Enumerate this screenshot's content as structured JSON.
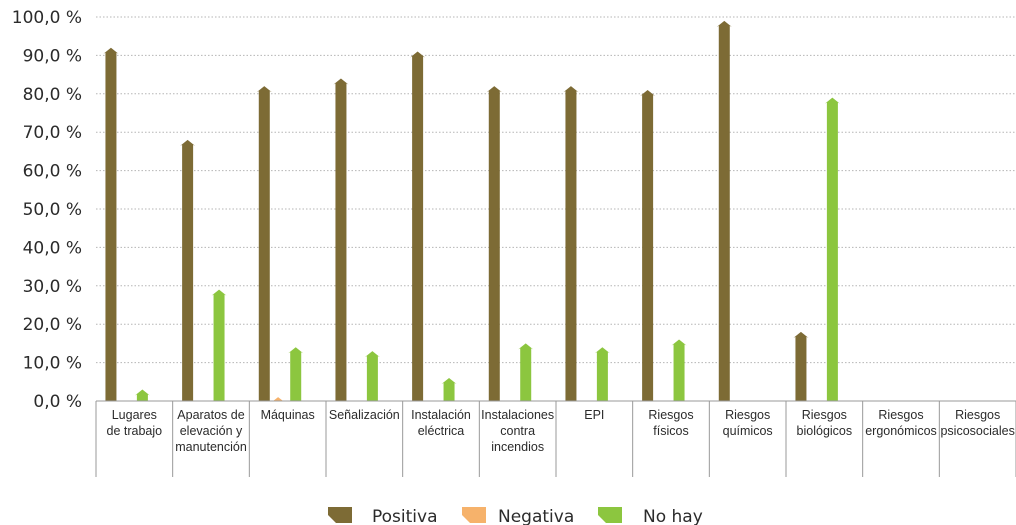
{
  "chart_data": {
    "type": "bar",
    "title": "",
    "xlabel": "",
    "ylabel": "",
    "ylim": [
      0,
      100
    ],
    "yticks": [
      0,
      10,
      20,
      30,
      40,
      50,
      60,
      70,
      80,
      90,
      100
    ],
    "ytick_labels": [
      "0,0 %",
      "10,0 %",
      "20,0 %",
      "30,0 %",
      "40,0 %",
      "50,0 %",
      "60,0 %",
      "70,0 %",
      "80,0 %",
      "90,0 %",
      "100,0 %"
    ],
    "grid": true,
    "legend_position": "bottom",
    "categories": [
      [
        "Lugares",
        "de trabajo"
      ],
      [
        "Aparatos de",
        "elevación y",
        "manutención"
      ],
      [
        "Máquinas"
      ],
      [
        "Señalización"
      ],
      [
        "Instalación",
        "eléctrica"
      ],
      [
        "Instalaciones",
        "contra",
        "incendios"
      ],
      [
        "EPI"
      ],
      [
        "Riesgos",
        "físicos"
      ],
      [
        "Riesgos",
        "químicos"
      ],
      [
        "Riesgos",
        "biológicos"
      ],
      [
        "Riesgos",
        "ergonómicos"
      ],
      [
        "Riesgos",
        "psicosociales"
      ]
    ],
    "series": [
      {
        "name": "Positiva",
        "color": "#7d6b35",
        "values": [
          92,
          68,
          82,
          84,
          91,
          82,
          82,
          81,
          99,
          18,
          0,
          0
        ]
      },
      {
        "name": "Negativa",
        "color": "#f6b26b",
        "values": [
          0,
          0,
          1,
          0,
          0,
          0,
          0,
          0,
          0,
          0,
          0,
          0
        ]
      },
      {
        "name": "No hay",
        "color": "#8cc63f",
        "values": [
          3,
          29,
          14,
          13,
          6,
          15,
          14,
          16,
          0,
          79,
          0,
          0
        ]
      }
    ]
  }
}
